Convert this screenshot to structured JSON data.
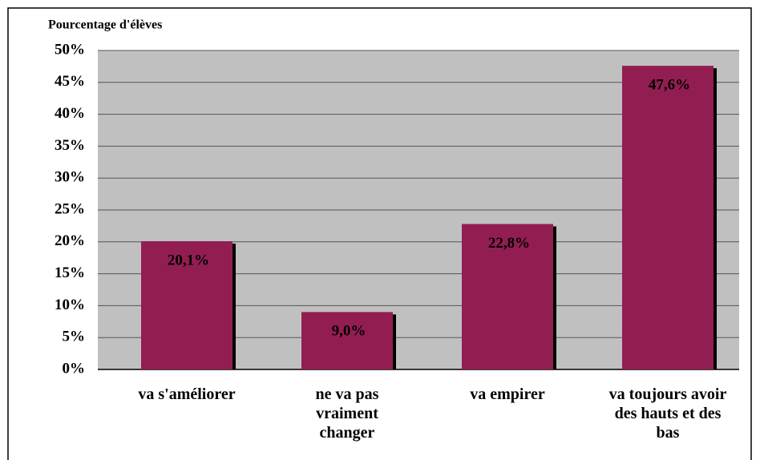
{
  "chart_data": {
    "type": "bar",
    "y_label": "Pourcentage d'élèves",
    "categories": [
      "va s'améliorer",
      "ne va pas vraiment changer",
      "va empirer",
      "va toujours avoir des hauts et des bas"
    ],
    "values": [
      20.1,
      9.0,
      22.8,
      47.6
    ],
    "value_labels": [
      "20,1%",
      "9,0%",
      "22,8%",
      "47,6%"
    ],
    "color": "#921e51",
    "ylim": [
      0,
      50
    ],
    "yticks": [
      {
        "value": 0,
        "label": "0%"
      },
      {
        "value": 5,
        "label": "5%"
      },
      {
        "value": 10,
        "label": "10%"
      },
      {
        "value": 15,
        "label": "15%"
      },
      {
        "value": 20,
        "label": "20%"
      },
      {
        "value": 25,
        "label": "25%"
      },
      {
        "value": 30,
        "label": "30%"
      },
      {
        "value": 35,
        "label": "35%"
      },
      {
        "value": 40,
        "label": "40%"
      },
      {
        "value": 45,
        "label": "45%"
      },
      {
        "value": 50,
        "label": "50%"
      }
    ],
    "grid": true
  }
}
